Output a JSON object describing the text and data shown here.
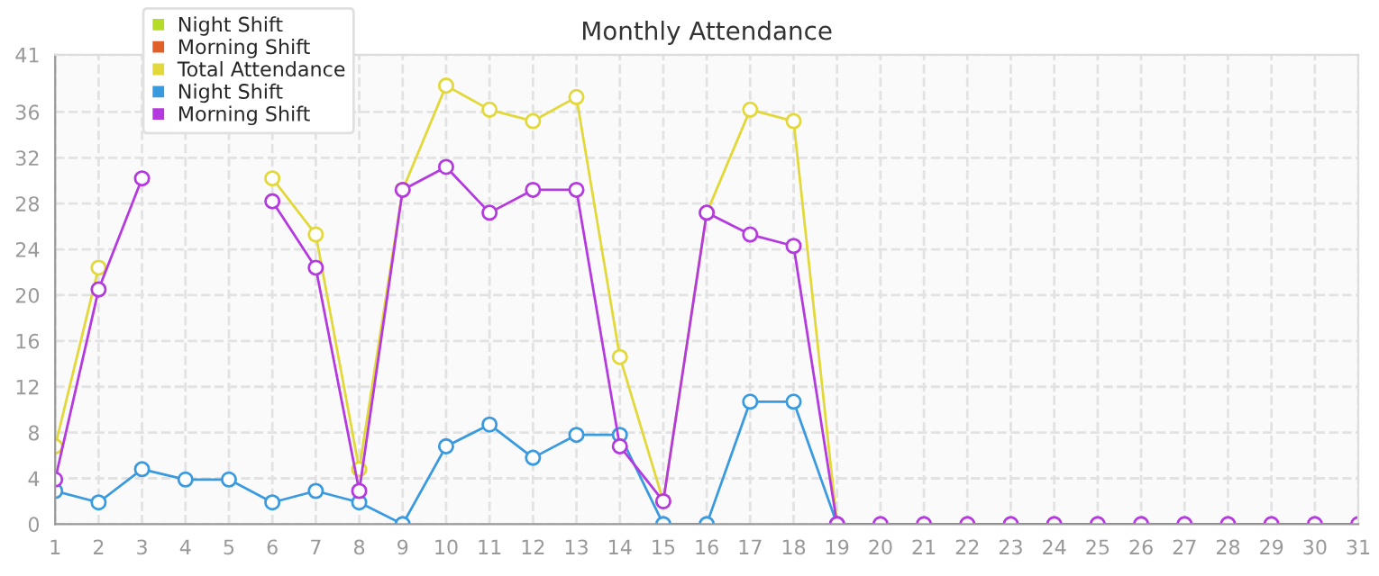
{
  "chart_data": {
    "type": "line",
    "title": "Monthly Attendance",
    "x": [
      1,
      2,
      3,
      4,
      5,
      6,
      7,
      8,
      9,
      10,
      11,
      12,
      13,
      14,
      15,
      16,
      17,
      18,
      19,
      20,
      21,
      22,
      23,
      24,
      25,
      26,
      27,
      28,
      29,
      30,
      31
    ],
    "series": [
      {
        "name": "Night Shift",
        "color": "#b5dc2a",
        "values": [
          null,
          null,
          null,
          null,
          null,
          null,
          null,
          null,
          null,
          null,
          null,
          null,
          null,
          null,
          null,
          null,
          null,
          null,
          null,
          null,
          null,
          null,
          null,
          null,
          null,
          null,
          null,
          null,
          null,
          null,
          null
        ]
      },
      {
        "name": "Morning Shift",
        "color": "#e0602a",
        "values": [
          null,
          null,
          null,
          null,
          null,
          null,
          null,
          null,
          null,
          null,
          null,
          null,
          null,
          null,
          null,
          null,
          null,
          null,
          null,
          null,
          null,
          null,
          null,
          null,
          null,
          null,
          null,
          null,
          null,
          null,
          null
        ]
      },
      {
        "name": "Total Attendance",
        "color": "#e2d83a",
        "values": [
          6.8,
          22.4,
          null,
          null,
          null,
          30.2,
          25.3,
          4.8,
          29.2,
          38.3,
          36.2,
          35.2,
          37.3,
          14.6,
          2,
          27.2,
          36.2,
          35.2,
          0,
          null,
          null,
          null,
          null,
          null,
          null,
          null,
          null,
          null,
          null,
          null,
          null
        ]
      },
      {
        "name": "Night Shift",
        "color": "#3a9ae0",
        "values": [
          2.9,
          1.9,
          4.8,
          3.9,
          3.9,
          1.9,
          2.9,
          1.9,
          0,
          6.8,
          8.7,
          5.8,
          7.8,
          7.8,
          0,
          0,
          10.7,
          10.7,
          0,
          null,
          null,
          null,
          null,
          null,
          null,
          null,
          null,
          null,
          null,
          null,
          null
        ]
      },
      {
        "name": "Morning Shift",
        "color": "#b43ae0",
        "values": [
          3.9,
          20.5,
          30.2,
          null,
          null,
          28.2,
          22.4,
          2.9,
          29.2,
          31.2,
          27.2,
          29.2,
          29.2,
          6.8,
          2,
          27.2,
          25.3,
          24.3,
          0,
          0,
          0,
          0,
          0,
          0,
          0,
          0,
          0,
          0,
          0,
          0,
          0
        ]
      }
    ],
    "xlim": [
      1,
      31
    ],
    "xticks": [
      1,
      2,
      3,
      4,
      5,
      6,
      7,
      8,
      9,
      10,
      11,
      12,
      13,
      14,
      15,
      16,
      17,
      18,
      19,
      20,
      21,
      22,
      23,
      24,
      25,
      26,
      27,
      28,
      29,
      30,
      31
    ],
    "ylim": [
      0,
      41
    ],
    "yticks": [
      0,
      4,
      8,
      12,
      16,
      20,
      24,
      28,
      32,
      36,
      41
    ],
    "grid": true,
    "legend": "top left",
    "marker": "circle",
    "line_style": "solid"
  }
}
